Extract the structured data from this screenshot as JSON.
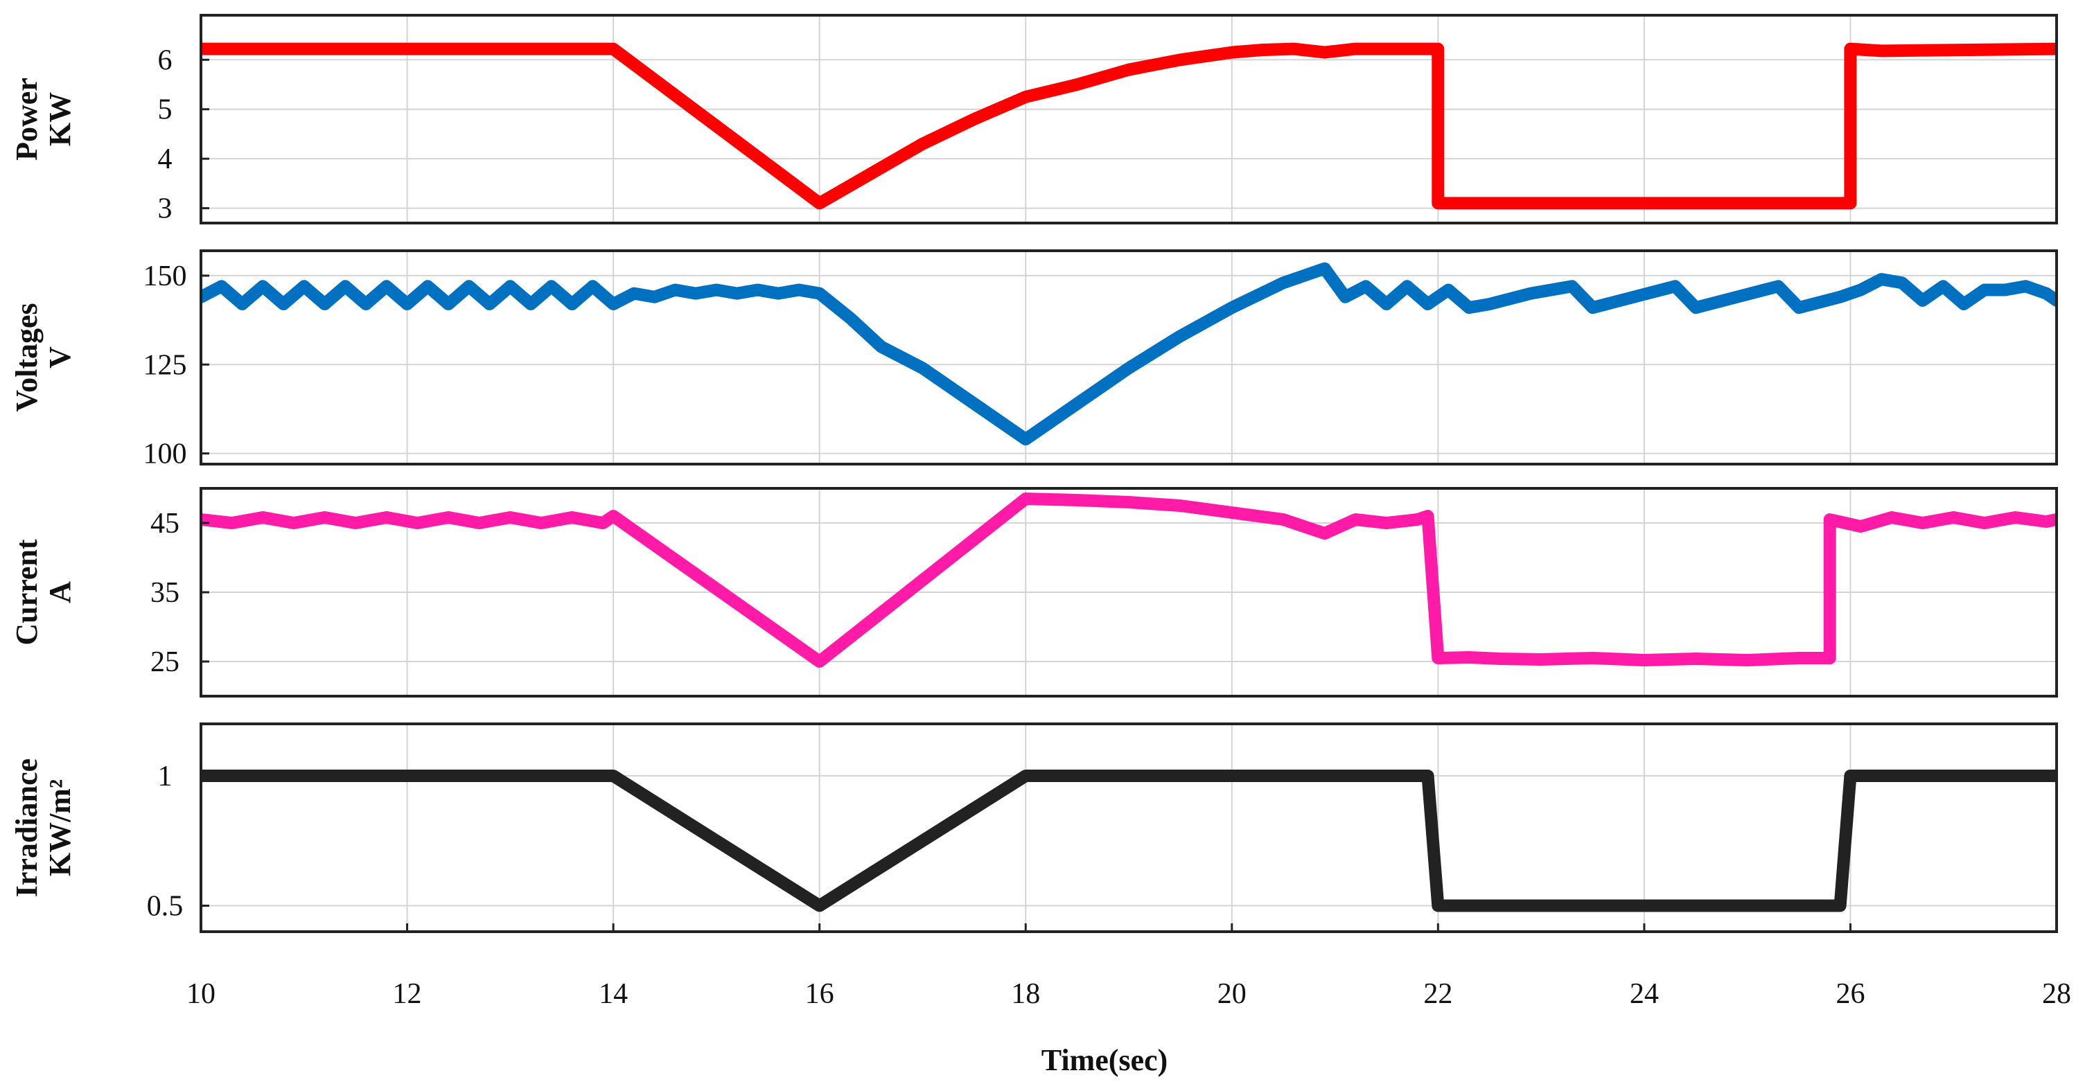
{
  "chart_data": {
    "type": "line",
    "xlabel": "Time(sec)",
    "xlim": [
      10,
      28
    ],
    "xticks": [
      10,
      12,
      14,
      16,
      18,
      20,
      22,
      24,
      26,
      28
    ],
    "xtick_labels": [
      "10",
      "12",
      "14",
      "16",
      "18",
      "20",
      "22",
      "24",
      "26",
      "28"
    ],
    "grid": true,
    "panels": [
      {
        "id": "power",
        "ylabel_lines": [
          "Power",
          "KW"
        ],
        "ylim": [
          2.7,
          6.9
        ],
        "yticks": [
          3,
          4,
          5,
          6
        ],
        "ytick_labels": [
          "3",
          "4",
          "5",
          "6"
        ],
        "color": "#ff0000",
        "series": [
          {
            "x": [
              10,
              14,
              16,
              16.5,
              17,
              17.5,
              18,
              18.5,
              19,
              19.5,
              20,
              20.3,
              20.6,
              20.9,
              21.2,
              21.5,
              22,
              22,
              26,
              26,
              26.3,
              28
            ],
            "values": [
              6.22,
              6.22,
              3.1,
              3.7,
              4.3,
              4.8,
              5.25,
              5.5,
              5.8,
              6.0,
              6.15,
              6.2,
              6.22,
              6.15,
              6.22,
              6.22,
              6.22,
              3.1,
              3.1,
              6.22,
              6.18,
              6.22
            ]
          }
        ]
      },
      {
        "id": "voltage",
        "ylabel_lines": [
          "Voltages",
          "V"
        ],
        "ylim": [
          97,
          157
        ],
        "yticks": [
          100,
          125,
          150
        ],
        "ytick_labels": [
          "100",
          "125",
          "150"
        ],
        "color": "#0070c0",
        "series": [
          {
            "x": [
              10,
              10.2,
              10.4,
              10.6,
              10.8,
              11,
              11.2,
              11.4,
              11.6,
              11.8,
              12,
              12.2,
              12.4,
              12.6,
              12.8,
              13,
              13.2,
              13.4,
              13.6,
              13.8,
              14,
              14.2,
              14.4,
              14.6,
              14.8,
              15,
              15.2,
              15.4,
              15.6,
              15.8,
              16,
              16.3,
              16.6,
              17,
              17.5,
              18,
              18.5,
              19,
              19.5,
              20,
              20.5,
              20.9,
              21.1,
              21.3,
              21.5,
              21.7,
              21.9,
              22.1,
              22.3,
              22.5,
              22.9,
              23.3,
              23.5,
              23.9,
              24.3,
              24.5,
              24.9,
              25.3,
              25.5,
              25.9,
              26.1,
              26.3,
              26.5,
              26.7,
              26.9,
              27.1,
              27.3,
              27.5,
              27.7,
              27.9,
              28
            ],
            "values": [
              144,
              147,
              142,
              147,
              142,
              147,
              142,
              147,
              142,
              147,
              142,
              147,
              142,
              147,
              142,
              147,
              142,
              147,
              142,
              147,
              142,
              145,
              144,
              146,
              145,
              146,
              145,
              146,
              145,
              146,
              145,
              138,
              130,
              124,
              114,
              104,
              114,
              124,
              133,
              141,
              148,
              152,
              144,
              147,
              142,
              147,
              142,
              146,
              141,
              142,
              145,
              147,
              141,
              144,
              147,
              141,
              144,
              147,
              141,
              144,
              146,
              149,
              148,
              143,
              147,
              142,
              146,
              146,
              147,
              145,
              143
            ]
          }
        ]
      },
      {
        "id": "current",
        "ylabel_lines": [
          "Current",
          "A"
        ],
        "ylim": [
          20,
          50
        ],
        "yticks": [
          25,
          35,
          45
        ],
        "ytick_labels": [
          "25",
          "35",
          "45"
        ],
        "color": "#ff1aa8",
        "series": [
          {
            "x": [
              10,
              10.3,
              10.6,
              10.9,
              11.2,
              11.5,
              11.8,
              12.1,
              12.4,
              12.7,
              13,
              13.3,
              13.6,
              13.9,
              14,
              16,
              18,
              18.5,
              19,
              19.5,
              20,
              20.5,
              20.9,
              21.2,
              21.5,
              21.8,
              21.9,
              22,
              22.3,
              22.6,
              23,
              23.5,
              24,
              24.5,
              25,
              25.5,
              25.8,
              25.8,
              26.1,
              26.4,
              26.7,
              27,
              27.3,
              27.6,
              27.9,
              28
            ],
            "values": [
              45.5,
              45,
              45.8,
              45,
              45.8,
              45,
              45.8,
              45,
              45.8,
              45,
              45.8,
              45,
              45.8,
              45,
              46,
              25,
              48.5,
              48.3,
              48,
              47.5,
              46.5,
              45.5,
              43.5,
              45.5,
              45,
              45.5,
              46,
              25.5,
              25.6,
              25.4,
              25.3,
              25.5,
              25.2,
              25.4,
              25.2,
              25.5,
              25.5,
              45.5,
              44.5,
              45.8,
              45,
              45.8,
              45,
              45.8,
              45.2,
              45.5
            ]
          }
        ]
      },
      {
        "id": "irradiance",
        "ylabel_lines": [
          "Irradiance",
          "KW/m²"
        ],
        "ylim": [
          0.4,
          1.2
        ],
        "yticks": [
          0.5,
          1
        ],
        "ytick_labels": [
          "0.5",
          "1"
        ],
        "color": "#222222",
        "series": [
          {
            "x": [
              10,
              14,
              16,
              18,
              21.9,
              22,
              25.9,
              26,
              28
            ],
            "values": [
              1,
              1,
              0.5,
              1,
              1,
              0.5,
              0.5,
              1,
              1
            ]
          }
        ]
      }
    ]
  }
}
